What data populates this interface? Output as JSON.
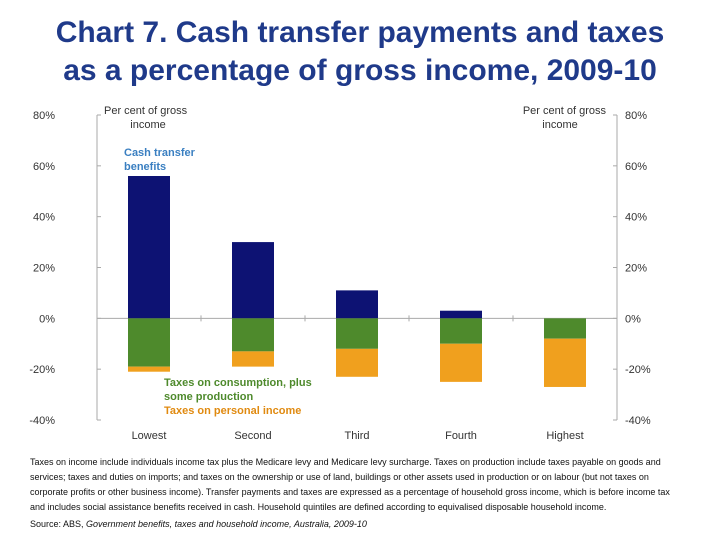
{
  "page": {
    "title_line1": "Chart 7. Cash transfer payments and taxes",
    "title_line2": "as a percentage of gross income, 2009-10",
    "note": "Taxes on income include individuals income tax plus the Medicare levy and Medicare levy surcharge. Taxes on production include taxes payable on goods and services; taxes and duties on imports; and taxes on the ownership or use of land, buildings or other assets used in production or on labour (but not taxes on corporate profits or other business income). Transfer payments and taxes are expressed as a percentage of household gross income, which is before income tax and includes social assistance benefits received in cash. Household quintiles are defined according to equivalised disposable household income.",
    "source_prefix": "Source: ABS, ",
    "source_title": "Government benefits, taxes and household income, Australia, 2009-10"
  },
  "colors": {
    "transfers": "#0d1273",
    "consumption": "#4e8a2c",
    "income_tax": "#f0a01e",
    "transfers_label": "#3a7fc1",
    "tax_label": "#e08a10",
    "axis_text": "#333333",
    "gridline": "#aaaaaa"
  },
  "chart_data": {
    "type": "bar",
    "stacked": true,
    "categories": [
      "Lowest",
      "Second",
      "Third",
      "Fourth",
      "Highest"
    ],
    "series": [
      {
        "name": "Cash transfer benefits",
        "values": [
          56,
          30,
          11,
          3,
          0
        ]
      },
      {
        "name": "Taxes on consumption, plus some production",
        "values": [
          -19,
          -13,
          -12,
          -10,
          -8
        ]
      },
      {
        "name": "Taxes on personal income",
        "values": [
          -2,
          -6,
          -11,
          -15,
          -19
        ]
      }
    ],
    "ylim": [
      -40,
      80
    ],
    "yticks": [
      -40,
      -20,
      0,
      20,
      40,
      60,
      80
    ],
    "ytick_labels": [
      "-40%",
      "-20%",
      "0%",
      "20%",
      "40%",
      "60%",
      "80%"
    ],
    "ylabel_left": [
      "Per cent of gross",
      "income"
    ],
    "ylabel_right": [
      "Per cent of gross",
      "income"
    ],
    "legend_transfers": [
      "Cash transfer",
      "benefits"
    ],
    "legend_taxes": [
      "Taxes on consumption, plus",
      "some production"
    ],
    "legend_income_tax": "Taxes on personal income",
    "grid": false
  }
}
